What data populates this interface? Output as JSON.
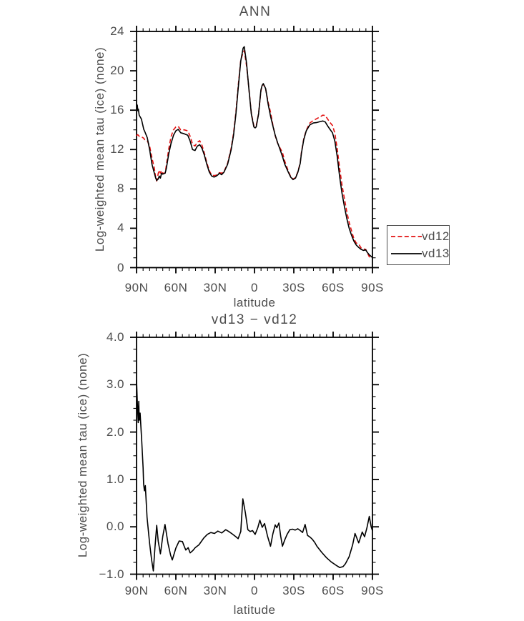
{
  "page": {
    "background": "#ffffff",
    "text_color": "#4d4d4d",
    "axis_color": "#000000"
  },
  "chart_data": [
    {
      "type": "line",
      "title": "ANN",
      "xlabel": "latitude",
      "ylabel": "Log-weighted mean tau (ice) (none)",
      "xlim": [
        90,
        -90
      ],
      "ylim": [
        0,
        24
      ],
      "grid": false,
      "xtick_labels": [
        "90N",
        "60N",
        "30N",
        "0",
        "30S",
        "60S",
        "90S"
      ],
      "xtick_lats": [
        90,
        60,
        30,
        0,
        -30,
        -60,
        -90
      ],
      "xtick_minor_step": 5,
      "ytick_labels": [
        "0",
        "4",
        "8",
        "12",
        "16",
        "20",
        "24"
      ],
      "ytick_values": [
        0,
        4,
        8,
        12,
        16,
        20,
        24
      ],
      "ytick_minor_step": 1,
      "legend": {
        "position": "outside-right",
        "entries": [
          {
            "label": "vd12",
            "color": "#e31010",
            "style": "dashed"
          },
          {
            "label": "vd13",
            "color": "#000000",
            "style": "solid"
          }
        ]
      },
      "series": [
        {
          "name": "vd12",
          "color": "#e31010",
          "style": "dashed",
          "lat": [
            90,
            89.4,
            89,
            88.6,
            88,
            86.3,
            84.5,
            83.6,
            81.8,
            80,
            78.2,
            76.4,
            75.4,
            74.6,
            73.5,
            72.7,
            71.8,
            70.9,
            70,
            68.2,
            67.3,
            65.5,
            63.7,
            61.8,
            60,
            58.2,
            56.3,
            53.6,
            50.9,
            49.1,
            47.3,
            45.4,
            43.6,
            41.8,
            40,
            38.2,
            36.4,
            34.5,
            32.7,
            30.9,
            29.1,
            27.7,
            26.9,
            25.1,
            23.3,
            20.5,
            17.8,
            16,
            14.2,
            12.4,
            10.5,
            8.7,
            7.8,
            6,
            4.2,
            2.4,
            0.5,
            -0.5,
            -1.3,
            -3.1,
            -4.9,
            -5.8,
            -6.7,
            -8.5,
            -10.4,
            -12.2,
            -14,
            -15.8,
            -17.6,
            -19.5,
            -21.3,
            -23.1,
            -25.8,
            -27.6,
            -29.4,
            -31.3,
            -33.1,
            -34.9,
            -35.8,
            -37.6,
            -39.5,
            -42.2,
            -44.9,
            -47.6,
            -50.4,
            -52.2,
            -54,
            -55.8,
            -57.6,
            -59.5,
            -61.3,
            -63.1,
            -64.9,
            -66.7,
            -68.6,
            -70.4,
            -72.2,
            -74,
            -75.8,
            -77.6,
            -79.5,
            -81.3,
            -83.1,
            -84.9,
            -85.8,
            -87.6,
            -89.4,
            -90
          ],
          "values": [
            13.4,
            13.5,
            13.5,
            13.45,
            13.35,
            13.3,
            13.15,
            12.95,
            12.9,
            12.35,
            11.15,
            10.1,
            9.15,
            8.8,
            9.55,
            9.9,
            9.6,
            9.85,
            9.6,
            9.6,
            10.35,
            12.0,
            13.3,
            14.0,
            14.3,
            14.35,
            14.0,
            14.0,
            13.9,
            13.35,
            12.55,
            12.35,
            12.75,
            12.9,
            12.4,
            11.6,
            10.65,
            9.85,
            9.4,
            9.35,
            9.4,
            9.55,
            9.65,
            9.6,
            9.75,
            10.6,
            12.15,
            13.65,
            15.8,
            18.55,
            21.1,
            21.85,
            22.05,
            20.45,
            18.1,
            15.7,
            14.4,
            14.35,
            14.4,
            15.65,
            17.95,
            18.5,
            18.65,
            18.15,
            16.8,
            15.8,
            14.5,
            13.4,
            12.65,
            12.15,
            11.7,
            10.8,
            9.8,
            9.25,
            9.0,
            9.15,
            9.75,
            10.65,
            11.7,
            13.1,
            13.95,
            14.7,
            14.95,
            15.15,
            15.35,
            15.5,
            15.45,
            15.1,
            14.75,
            14.45,
            13.65,
            12.1,
            10.15,
            8.45,
            7.0,
            5.7,
            4.6,
            3.75,
            2.95,
            2.5,
            2.4,
            2.0,
            1.9,
            1.85,
            1.6,
            1.1,
            1.05,
            1.05
          ]
        },
        {
          "name": "vd13",
          "color": "#000000",
          "style": "solid",
          "lat": [
            90,
            89.4,
            89,
            88.6,
            88,
            86.3,
            84.5,
            83.6,
            81.8,
            80,
            78.2,
            76.4,
            75.4,
            74.6,
            73.5,
            72.7,
            71.8,
            70.9,
            70,
            68.2,
            67.3,
            65.5,
            63.7,
            61.8,
            60,
            58.2,
            56.3,
            53.6,
            50.9,
            49.1,
            47.3,
            45.4,
            43.6,
            41.8,
            40,
            38.2,
            36.4,
            34.5,
            32.7,
            30.9,
            29.1,
            27.7,
            26.9,
            25.1,
            23.3,
            20.5,
            17.8,
            16,
            14.2,
            12.4,
            10.5,
            8.7,
            7.8,
            6,
            4.2,
            2.4,
            0.5,
            -0.5,
            -1.3,
            -3.1,
            -4.9,
            -5.8,
            -6.7,
            -8.5,
            -10.4,
            -12.2,
            -14,
            -15.8,
            -17.6,
            -19.5,
            -21.3,
            -23.1,
            -25.8,
            -27.6,
            -29.4,
            -31.3,
            -33.1,
            -34.9,
            -35.8,
            -37.6,
            -39.5,
            -42.2,
            -44.9,
            -47.6,
            -50.4,
            -52.2,
            -54,
            -55.8,
            -57.6,
            -59.5,
            -61.3,
            -63.1,
            -64.9,
            -66.7,
            -68.6,
            -70.4,
            -72.2,
            -74,
            -75.8,
            -77.6,
            -79.5,
            -81.3,
            -83.1,
            -84.9,
            -85.8,
            -87.6,
            -89.4,
            -90
          ],
          "values": [
            16.6,
            16.5,
            15.95,
            16.1,
            15.5,
            15.1,
            14.05,
            13.8,
            13.2,
            12.0,
            10.5,
            9.6,
            9.1,
            8.85,
            9.0,
            9.3,
            9.1,
            9.6,
            9.5,
            9.6,
            10.05,
            11.5,
            12.6,
            13.45,
            13.9,
            14.05,
            13.7,
            13.6,
            13.45,
            12.85,
            12.0,
            11.9,
            12.35,
            12.5,
            12.1,
            11.4,
            10.5,
            9.7,
            9.3,
            9.2,
            9.3,
            9.45,
            9.6,
            9.45,
            9.7,
            10.5,
            12.0,
            13.45,
            15.6,
            18.3,
            21.0,
            22.3,
            22.45,
            20.7,
            18.05,
            15.6,
            14.3,
            14.2,
            14.3,
            15.6,
            18.05,
            18.5,
            18.7,
            18.2,
            16.6,
            15.4,
            14.4,
            13.45,
            12.7,
            12.0,
            11.3,
            10.5,
            9.7,
            9.2,
            8.95,
            9.1,
            9.7,
            10.6,
            11.6,
            13.0,
            13.9,
            14.5,
            14.7,
            14.75,
            14.85,
            14.9,
            14.8,
            14.4,
            14.05,
            13.7,
            12.85,
            11.3,
            9.3,
            7.6,
            6.2,
            5.0,
            4.0,
            3.3,
            2.7,
            2.3,
            2.05,
            1.85,
            1.75,
            1.8,
            1.6,
            1.3,
            1.1,
            1.0
          ]
        }
      ]
    },
    {
      "type": "line",
      "title": "vd13 − vd12",
      "xlabel": "latitude",
      "ylabel": "Log-weighted mean tau (ice) (none)",
      "xlim": [
        90,
        -90
      ],
      "ylim": [
        -1.0,
        4.0
      ],
      "grid": false,
      "xtick_labels": [
        "90N",
        "60N",
        "30N",
        "0",
        "30S",
        "60S",
        "90S"
      ],
      "xtick_lats": [
        90,
        60,
        30,
        0,
        -30,
        -60,
        -90
      ],
      "xtick_minor_step": 5,
      "ytick_labels": [
        "−1.0",
        "0.0",
        "1.0",
        "2.0",
        "3.0",
        "4.0"
      ],
      "ytick_values": [
        -1.0,
        0.0,
        1.0,
        2.0,
        3.0,
        4.0
      ],
      "ytick_minor_step": 0.25,
      "series": [
        {
          "name": "vd13 - vd12",
          "color": "#000000",
          "style": "solid",
          "lat": [
            90,
            89.3,
            88.7,
            88.3,
            87.9,
            87.3,
            86,
            85,
            84.6,
            84,
            83.3,
            82,
            80,
            78.5,
            77.2,
            76,
            74.6,
            73.5,
            71.8,
            70,
            68.3,
            66,
            64,
            62.7,
            60,
            57.5,
            55,
            53.5,
            52.4,
            50.6,
            49.1,
            47,
            45.2,
            42.4,
            38.8,
            36,
            33.3,
            30.5,
            28,
            25,
            22,
            19.6,
            17,
            14.2,
            12.5,
            10.5,
            8.9,
            7,
            5.1,
            3.3,
            1.5,
            -0.5,
            -2.5,
            -4.1,
            -5.9,
            -7.7,
            -10,
            -12.2,
            -14,
            -15.8,
            -17,
            -18.6,
            -20,
            -21.3,
            -23,
            -24.9,
            -27,
            -29,
            -31,
            -33,
            -35,
            -36.7,
            -38.6,
            -40.4,
            -42.5,
            -44,
            -46,
            -47.6,
            -51.3,
            -54.9,
            -58.5,
            -62.2,
            -65,
            -67.6,
            -69.4,
            -72.2,
            -74.9,
            -76.7,
            -79.5,
            -82.2,
            -84,
            -85.8,
            -87.6,
            -89,
            -90
          ],
          "values": [
            3.1,
            2.55,
            2.2,
            2.65,
            2.25,
            2.4,
            1.8,
            1.24,
            0.91,
            0.76,
            0.87,
            0.2,
            -0.35,
            -0.7,
            -0.93,
            -0.45,
            0.03,
            -0.3,
            -0.57,
            -0.2,
            0.05,
            -0.35,
            -0.6,
            -0.7,
            -0.45,
            -0.3,
            -0.31,
            -0.42,
            -0.49,
            -0.44,
            -0.55,
            -0.5,
            -0.44,
            -0.38,
            -0.24,
            -0.16,
            -0.12,
            -0.14,
            -0.09,
            -0.13,
            -0.06,
            -0.1,
            -0.15,
            -0.21,
            -0.25,
            -0.1,
            0.59,
            0.3,
            -0.06,
            -0.1,
            -0.08,
            -0.16,
            -0.02,
            0.14,
            -0.01,
            0.07,
            -0.2,
            -0.41,
            -0.15,
            0.04,
            -0.02,
            0.08,
            -0.2,
            -0.41,
            -0.28,
            -0.16,
            -0.06,
            -0.05,
            -0.07,
            -0.04,
            -0.08,
            -0.12,
            0.05,
            -0.18,
            -0.22,
            -0.26,
            -0.33,
            -0.41,
            -0.54,
            -0.65,
            -0.74,
            -0.81,
            -0.86,
            -0.84,
            -0.78,
            -0.63,
            -0.38,
            -0.14,
            -0.34,
            -0.11,
            -0.21,
            -0.02,
            0.22,
            0.0,
            -0.08
          ]
        }
      ]
    }
  ]
}
